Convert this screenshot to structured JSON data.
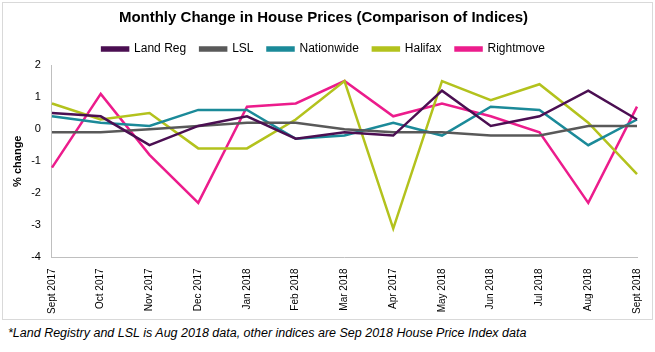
{
  "chart_data": {
    "type": "line",
    "title": "Monthly Change in House Prices (Comparison of Indices)",
    "y_label": "% change",
    "annotations": [
      "*Land Registry and LSL is Aug 2018 data, other indices are Sep 2018 House Price Index data"
    ],
    "categories": [
      "Sept 2017",
      "Oct 2017",
      "Nov 2017",
      "Dec 2017",
      "Jan 2018",
      "Feb 2018",
      "Mar 2018",
      "Apr 2017",
      "May 2018",
      "Jun 2018",
      "Jul 2018",
      "Aug 2018",
      "Sept 2018"
    ],
    "series": [
      {
        "name": "Land Reg",
        "color": "#4b0f52",
        "values": [
          0.5,
          0.4,
          -0.5,
          0.1,
          0.4,
          -0.3,
          -0.1,
          -0.2,
          1.2,
          0.1,
          0.4,
          1.2,
          0.3
        ]
      },
      {
        "name": "LSL",
        "color": "#595959",
        "values": [
          -0.1,
          -0.1,
          0.0,
          0.1,
          0.2,
          0.2,
          0.0,
          -0.1,
          -0.1,
          -0.2,
          -0.2,
          0.1,
          0.1
        ]
      },
      {
        "name": "Nationwide",
        "color": "#1b8a99",
        "values": [
          0.4,
          0.2,
          0.1,
          0.6,
          0.6,
          -0.3,
          -0.2,
          0.2,
          -0.2,
          0.7,
          0.6,
          -0.5,
          0.3
        ]
      },
      {
        "name": "Halifax",
        "color": "#b3c21d",
        "values": [
          0.8,
          0.3,
          0.5,
          -0.6,
          -0.6,
          0.3,
          1.5,
          -3.1,
          1.5,
          0.9,
          1.4,
          0.2,
          -1.4
        ]
      },
      {
        "name": "Rightmove",
        "color": "#ec1c8c",
        "values": [
          -1.2,
          1.1,
          -0.8,
          -2.3,
          0.7,
          0.8,
          1.5,
          0.4,
          0.8,
          0.4,
          -0.1,
          -2.3,
          0.7
        ]
      }
    ],
    "ylim": [
      -4,
      2
    ],
    "yticks": [
      -4,
      -3,
      -2,
      -1,
      0,
      1,
      2
    ],
    "grid": false,
    "legend": "top",
    "marker": "none",
    "line_style": "solid"
  }
}
